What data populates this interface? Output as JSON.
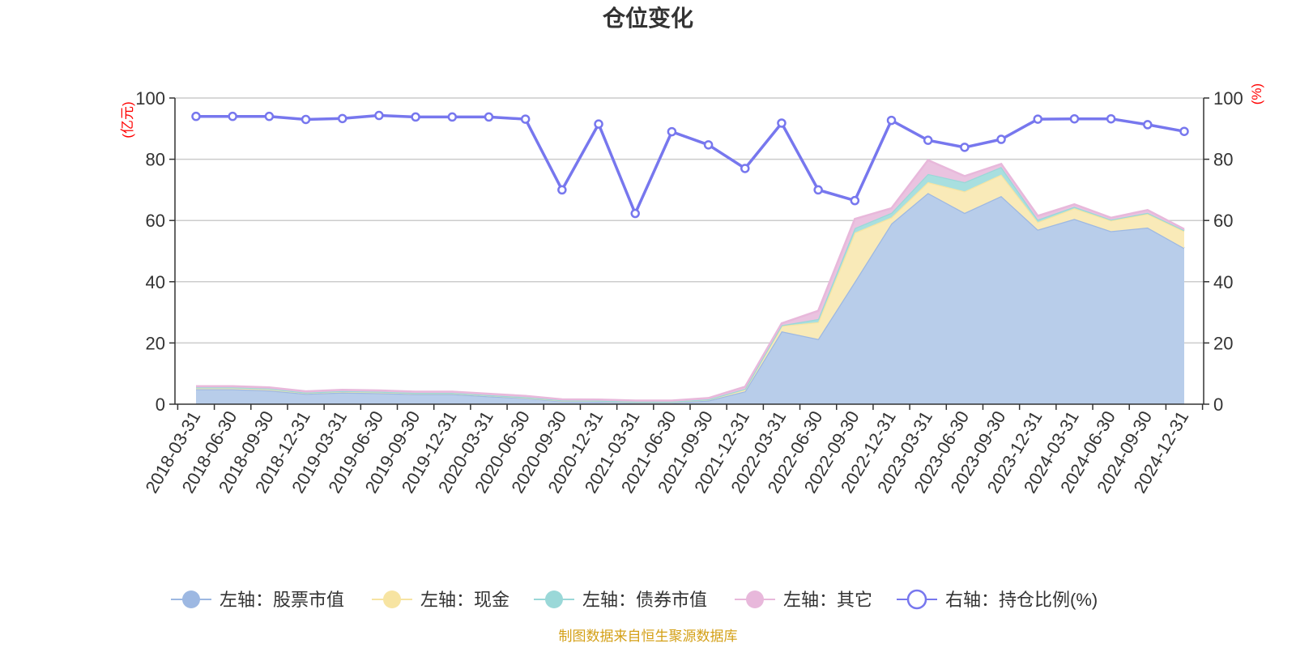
{
  "chart_data": {
    "type": "area+line",
    "title": "仓位变化",
    "left_unit": "(亿元)",
    "right_unit": "(%)",
    "left_ylim": [
      0,
      100
    ],
    "right_ylim": [
      0,
      100
    ],
    "left_ticks": [
      "0",
      "20",
      "40",
      "60",
      "80",
      "100"
    ],
    "right_ticks": [
      "0",
      "20",
      "40",
      "60",
      "80",
      "100"
    ],
    "categories": [
      "2018-03-31",
      "2018-06-30",
      "2018-09-30",
      "2018-12-31",
      "2019-03-31",
      "2019-06-30",
      "2019-09-30",
      "2019-12-31",
      "2020-03-31",
      "2020-06-30",
      "2020-09-30",
      "2020-12-31",
      "2021-03-31",
      "2021-06-30",
      "2021-09-30",
      "2021-12-31",
      "2022-03-31",
      "2022-06-30",
      "2022-09-30",
      "2022-12-31",
      "2023-03-31",
      "2023-06-30",
      "2023-09-30",
      "2023-12-31",
      "2024-03-31",
      "2024-06-30",
      "2024-09-30",
      "2024-12-31"
    ],
    "stacked_series": [
      {
        "name": "左轴：股票市值",
        "color": "#9db8e2",
        "fill": "#b8cdea",
        "values": [
          4.9,
          4.9,
          4.5,
          3.4,
          3.8,
          3.6,
          3.3,
          3.3,
          2.6,
          2.0,
          1.0,
          0.9,
          0.6,
          0.6,
          1.2,
          4.2,
          23.8,
          21.3,
          40.0,
          59.0,
          69.0,
          62.5,
          68.0,
          57.0,
          60.5,
          56.5,
          57.7,
          51.0
        ]
      },
      {
        "name": "左轴：现金",
        "color": "#f7e4a2",
        "fill": "#f9eab8",
        "values": [
          0.5,
          0.5,
          0.5,
          0.3,
          0.4,
          0.4,
          0.3,
          0.3,
          0.3,
          0.2,
          0.2,
          0.2,
          0.2,
          0.2,
          0.3,
          0.7,
          1.8,
          5.5,
          16.0,
          2.0,
          3.5,
          7.0,
          7.0,
          2.5,
          3.5,
          3.5,
          4.5,
          5.5
        ]
      },
      {
        "name": "左轴：债券市值",
        "color": "#9ad8d8",
        "fill": "#a8dfdf",
        "values": [
          0.1,
          0.1,
          0.1,
          0.1,
          0.1,
          0.1,
          0.1,
          0.1,
          0.1,
          0.1,
          0.1,
          0.1,
          0.1,
          0.1,
          0.1,
          0.1,
          0.2,
          1.0,
          1.5,
          1.5,
          2.7,
          3.0,
          2.5,
          0.8,
          0.5,
          0.3,
          0.3,
          0.3
        ]
      },
      {
        "name": "左轴：其它",
        "color": "#e8b8db",
        "fill": "#eac3e0",
        "values": [
          0.4,
          0.4,
          0.4,
          0.4,
          0.4,
          0.4,
          0.4,
          0.4,
          0.4,
          0.4,
          0.3,
          0.3,
          0.3,
          0.3,
          0.4,
          0.7,
          0.6,
          2.7,
          3.0,
          1.5,
          4.5,
          2.0,
          1.0,
          1.2,
          0.8,
          0.6,
          0.9,
          0.4
        ]
      }
    ],
    "line_series": {
      "name": "右轴：持仓比例(%)",
      "color": "#7777ee",
      "values": [
        94,
        94,
        94,
        93,
        93.3,
        94.3,
        93.8,
        93.8,
        93.8,
        93.1,
        70,
        91.5,
        62.3,
        89,
        84.7,
        77,
        91.8,
        70,
        66.5,
        92.7,
        86.2,
        83.9,
        86.5,
        93.1,
        93.2,
        93.2,
        91.3,
        89.1
      ]
    },
    "legend_position": "bottom",
    "source": "制图数据来自恒生聚源数据库"
  }
}
